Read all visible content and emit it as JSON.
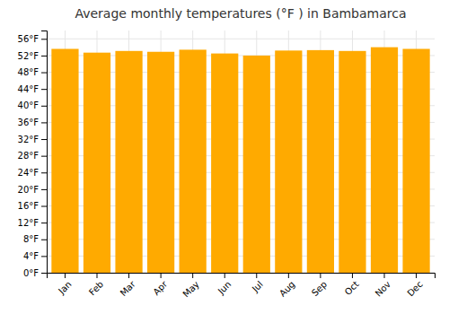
{
  "chart_data": {
    "type": "bar",
    "title": "Average monthly temperatures (°F ) in Bambamarca",
    "categories": [
      "Jan",
      "Feb",
      "Mar",
      "Apr",
      "May",
      "Jun",
      "Jul",
      "Aug",
      "Sep",
      "Oct",
      "Nov",
      "Dec"
    ],
    "values": [
      53.6,
      52.7,
      53.1,
      52.9,
      53.4,
      52.5,
      52.0,
      53.2,
      53.3,
      53.1,
      54.0,
      53.6
    ],
    "color": "#FFAA00",
    "ylim": [
      0,
      58
    ],
    "yticks": [
      {
        "value": 0,
        "label": "0°F"
      },
      {
        "value": 4,
        "label": "4°F"
      },
      {
        "value": 8,
        "label": "8°F"
      },
      {
        "value": 12,
        "label": "12°F"
      },
      {
        "value": 16,
        "label": "16°F"
      },
      {
        "value": 20,
        "label": "20°F"
      },
      {
        "value": 24,
        "label": "24°F"
      },
      {
        "value": 28,
        "label": "28°F"
      },
      {
        "value": 32,
        "label": "32°F"
      },
      {
        "value": 36,
        "label": "36°F"
      },
      {
        "value": 40,
        "label": "40°F"
      },
      {
        "value": 44,
        "label": "44°F"
      },
      {
        "value": 48,
        "label": "48°F"
      },
      {
        "value": 52,
        "label": "52°F"
      },
      {
        "value": 56,
        "label": "56°F"
      }
    ],
    "grid": true
  }
}
